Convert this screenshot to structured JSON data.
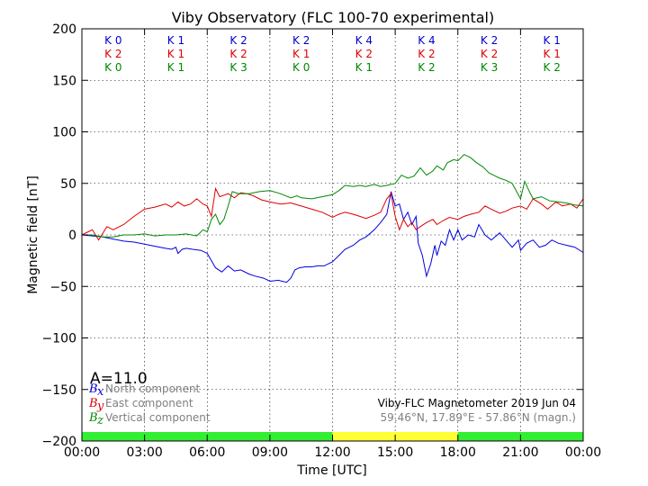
{
  "chart_data": {
    "type": "line",
    "title": "Viby Observatory (FLC 100-70 experimental)",
    "xlabel": "Time [UTC]",
    "ylabel": "Magnetic field [nT]",
    "xlim": [
      0,
      24
    ],
    "ylim": [
      -200,
      200
    ],
    "x_ticks": [
      0,
      3,
      6,
      9,
      12,
      15,
      18,
      21,
      24
    ],
    "x_tick_labels": [
      "00:00",
      "03:00",
      "06:00",
      "09:00",
      "12:00",
      "15:00",
      "18:00",
      "21:00",
      "00:00"
    ],
    "y_ticks": [
      -200,
      -150,
      -100,
      -50,
      0,
      50,
      100,
      150,
      200
    ],
    "y_tick_labels": [
      "−200",
      "−150",
      "−100",
      "−50",
      "0",
      "50",
      "100",
      "150",
      "200"
    ],
    "grid": true,
    "k_index": {
      "rows": [
        {
          "color": "#0000cc",
          "values": [
            "K 0",
            "K 1",
            "K 2",
            "K 2",
            "K 4",
            "K 4",
            "K 2",
            "K 1"
          ]
        },
        {
          "color": "#dd0000",
          "values": [
            "K 2",
            "K 1",
            "K 2",
            "K 1",
            "K 2",
            "K 2",
            "K 2",
            "K 1"
          ]
        },
        {
          "color": "#008800",
          "values": [
            "K 0",
            "K 1",
            "K 3",
            "K 0",
            "K 1",
            "K 2",
            "K 3",
            "K 2"
          ]
        }
      ]
    },
    "activity_bar": [
      {
        "from": 0,
        "to": 12,
        "color": "#33ee33"
      },
      {
        "from": 12,
        "to": 18,
        "color": "#ffff33"
      },
      {
        "from": 18,
        "to": 24,
        "color": "#33ee33"
      }
    ],
    "a_index_label": "A=11.0",
    "series": [
      {
        "name": "North component",
        "symbol": "B",
        "subscript": "x",
        "color": "#0000dd",
        "points": [
          [
            0,
            0
          ],
          [
            0.5,
            -1
          ],
          [
            1,
            -2
          ],
          [
            1.5,
            -4
          ],
          [
            2,
            -6
          ],
          [
            2.5,
            -7
          ],
          [
            3,
            -9
          ],
          [
            3.5,
            -11
          ],
          [
            4,
            -13
          ],
          [
            4.3,
            -14
          ],
          [
            4.5,
            -12
          ],
          [
            4.6,
            -18
          ],
          [
            4.8,
            -14
          ],
          [
            5,
            -13
          ],
          [
            5.3,
            -14
          ],
          [
            5.7,
            -15
          ],
          [
            6,
            -18
          ],
          [
            6.2,
            -25
          ],
          [
            6.4,
            -32
          ],
          [
            6.7,
            -36
          ],
          [
            7,
            -30
          ],
          [
            7.3,
            -35
          ],
          [
            7.6,
            -34
          ],
          [
            8,
            -38
          ],
          [
            8.3,
            -40
          ],
          [
            8.7,
            -42
          ],
          [
            9,
            -45
          ],
          [
            9.4,
            -44
          ],
          [
            9.8,
            -46
          ],
          [
            10,
            -42
          ],
          [
            10.2,
            -34
          ],
          [
            10.4,
            -32
          ],
          [
            10.7,
            -31
          ],
          [
            11,
            -31
          ],
          [
            11.3,
            -30
          ],
          [
            11.6,
            -30
          ],
          [
            12,
            -26
          ],
          [
            12.3,
            -20
          ],
          [
            12.6,
            -14
          ],
          [
            13,
            -10
          ],
          [
            13.3,
            -5
          ],
          [
            13.6,
            -2
          ],
          [
            14,
            5
          ],
          [
            14.3,
            12
          ],
          [
            14.6,
            20
          ],
          [
            14.8,
            42
          ],
          [
            15,
            28
          ],
          [
            15.2,
            30
          ],
          [
            15.4,
            15
          ],
          [
            15.6,
            22
          ],
          [
            15.8,
            10
          ],
          [
            16,
            18
          ],
          [
            16.1,
            -8
          ],
          [
            16.3,
            -20
          ],
          [
            16.5,
            -40
          ],
          [
            16.7,
            -28
          ],
          [
            16.9,
            -10
          ],
          [
            17,
            -20
          ],
          [
            17.2,
            -6
          ],
          [
            17.4,
            -10
          ],
          [
            17.6,
            5
          ],
          [
            17.8,
            -5
          ],
          [
            18,
            5
          ],
          [
            18.2,
            -5
          ],
          [
            18.5,
            0
          ],
          [
            18.8,
            -2
          ],
          [
            19,
            10
          ],
          [
            19.3,
            0
          ],
          [
            19.6,
            -5
          ],
          [
            20,
            2
          ],
          [
            20.3,
            -5
          ],
          [
            20.6,
            -12
          ],
          [
            20.9,
            -5
          ],
          [
            21,
            -15
          ],
          [
            21.3,
            -8
          ],
          [
            21.6,
            -5
          ],
          [
            21.9,
            -12
          ],
          [
            22.2,
            -10
          ],
          [
            22.5,
            -5
          ],
          [
            22.8,
            -8
          ],
          [
            23.2,
            -10
          ],
          [
            23.6,
            -12
          ],
          [
            24,
            -17
          ]
        ]
      },
      {
        "name": "East component",
        "symbol": "B",
        "subscript": "y",
        "color": "#dd0000",
        "points": [
          [
            0,
            0
          ],
          [
            0.5,
            5
          ],
          [
            0.8,
            -5
          ],
          [
            1.2,
            8
          ],
          [
            1.5,
            5
          ],
          [
            2,
            10
          ],
          [
            2.5,
            18
          ],
          [
            3,
            25
          ],
          [
            3.5,
            27
          ],
          [
            4,
            30
          ],
          [
            4.3,
            27
          ],
          [
            4.6,
            32
          ],
          [
            4.9,
            28
          ],
          [
            5.2,
            30
          ],
          [
            5.5,
            35
          ],
          [
            5.8,
            30
          ],
          [
            6,
            28
          ],
          [
            6.2,
            18
          ],
          [
            6.4,
            45
          ],
          [
            6.6,
            37
          ],
          [
            7,
            40
          ],
          [
            7.3,
            36
          ],
          [
            7.6,
            41
          ],
          [
            7.9,
            40
          ],
          [
            8.2,
            38
          ],
          [
            8.6,
            34
          ],
          [
            9,
            32
          ],
          [
            9.5,
            30
          ],
          [
            10,
            31
          ],
          [
            10.5,
            28
          ],
          [
            11,
            25
          ],
          [
            11.5,
            22
          ],
          [
            12,
            17
          ],
          [
            12.3,
            20
          ],
          [
            12.6,
            22
          ],
          [
            13,
            20
          ],
          [
            13.3,
            18
          ],
          [
            13.6,
            16
          ],
          [
            14,
            19
          ],
          [
            14.3,
            22
          ],
          [
            14.6,
            35
          ],
          [
            14.8,
            40
          ],
          [
            15,
            18
          ],
          [
            15.2,
            5
          ],
          [
            15.4,
            15
          ],
          [
            15.6,
            8
          ],
          [
            15.8,
            12
          ],
          [
            16,
            5
          ],
          [
            16.2,
            8
          ],
          [
            16.5,
            12
          ],
          [
            16.8,
            15
          ],
          [
            17,
            10
          ],
          [
            17.3,
            14
          ],
          [
            17.6,
            17
          ],
          [
            18,
            15
          ],
          [
            18.3,
            18
          ],
          [
            18.6,
            20
          ],
          [
            19,
            22
          ],
          [
            19.3,
            28
          ],
          [
            19.6,
            25
          ],
          [
            20,
            21
          ],
          [
            20.3,
            23
          ],
          [
            20.6,
            26
          ],
          [
            21,
            28
          ],
          [
            21.3,
            25
          ],
          [
            21.6,
            35
          ],
          [
            22,
            30
          ],
          [
            22.3,
            25
          ],
          [
            22.7,
            32
          ],
          [
            23,
            28
          ],
          [
            23.4,
            30
          ],
          [
            23.7,
            26
          ],
          [
            24,
            35
          ]
        ]
      },
      {
        "name": "Vertical component",
        "symbol": "B",
        "subscript": "z",
        "color": "#008800",
        "points": [
          [
            0,
            0
          ],
          [
            0.5,
            0
          ],
          [
            1,
            -2
          ],
          [
            1.5,
            -2
          ],
          [
            2,
            0
          ],
          [
            2.5,
            0
          ],
          [
            3,
            1
          ],
          [
            3.5,
            -1
          ],
          [
            4,
            0
          ],
          [
            4.5,
            0
          ],
          [
            5,
            1
          ],
          [
            5.5,
            -1
          ],
          [
            5.8,
            5
          ],
          [
            6,
            3
          ],
          [
            6.2,
            15
          ],
          [
            6.4,
            20
          ],
          [
            6.6,
            10
          ],
          [
            6.8,
            15
          ],
          [
            7,
            28
          ],
          [
            7.2,
            42
          ],
          [
            7.5,
            40
          ],
          [
            8,
            40
          ],
          [
            8.5,
            42
          ],
          [
            9,
            43
          ],
          [
            9.5,
            40
          ],
          [
            10,
            36
          ],
          [
            10.3,
            38
          ],
          [
            10.5,
            36
          ],
          [
            11,
            35
          ],
          [
            11.5,
            37
          ],
          [
            12,
            39
          ],
          [
            12.3,
            43
          ],
          [
            12.6,
            48
          ],
          [
            13,
            47
          ],
          [
            13.3,
            48
          ],
          [
            13.6,
            47
          ],
          [
            14,
            49
          ],
          [
            14.3,
            47
          ],
          [
            14.6,
            48
          ],
          [
            15,
            50
          ],
          [
            15.3,
            58
          ],
          [
            15.6,
            55
          ],
          [
            15.9,
            57
          ],
          [
            16.2,
            65
          ],
          [
            16.5,
            58
          ],
          [
            16.8,
            62
          ],
          [
            17,
            67
          ],
          [
            17.3,
            63
          ],
          [
            17.5,
            70
          ],
          [
            17.8,
            73
          ],
          [
            18,
            72
          ],
          [
            18.3,
            78
          ],
          [
            18.6,
            75
          ],
          [
            18.9,
            70
          ],
          [
            19.2,
            66
          ],
          [
            19.5,
            60
          ],
          [
            19.8,
            57
          ],
          [
            20,
            55
          ],
          [
            20.3,
            53
          ],
          [
            20.6,
            50
          ],
          [
            21,
            35
          ],
          [
            21.2,
            52
          ],
          [
            21.4,
            43
          ],
          [
            21.6,
            35
          ],
          [
            22,
            37
          ],
          [
            22.4,
            33
          ],
          [
            22.8,
            32
          ],
          [
            23.2,
            31
          ],
          [
            23.6,
            29
          ],
          [
            24,
            28
          ]
        ]
      }
    ],
    "info_line_1": "Viby-FLC Magnetometer 2019 Jun 04",
    "info_line_2": "59.46°N, 17.89°E - 57.86°N (magn.)",
    "info_colors": {
      "line_1": "#000000",
      "line_2": "#808080"
    }
  }
}
